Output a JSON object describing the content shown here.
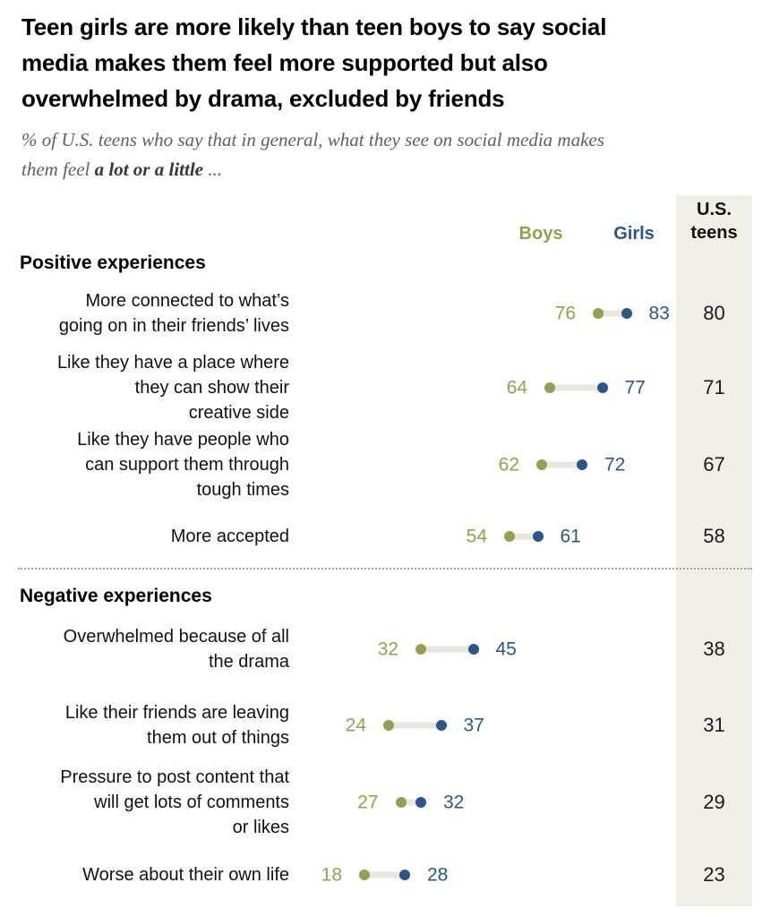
{
  "header": {
    "title": "Teen girls are more likely than teen boys to say social\nmedia makes them feel more supported but also\noverwhelmed by drama, excluded by friends",
    "subtitle_lead": "% of U.S. teens who say that in general, what they see on social media makes\nthem feel ",
    "subtitle_bold": "a lot or a little",
    "subtitle_trail": " ..."
  },
  "columns": {
    "boys_label": "Boys",
    "girls_label": "Girls",
    "us_teens_label": "U.S.\nteens"
  },
  "colors": {
    "boys": "#95A04F",
    "girls": "#2B568C",
    "connector": "#E9E6DF",
    "us_column_bg": "#F0EEE7"
  },
  "chart_data": {
    "type": "scatter",
    "variant": "dumbbell-dot-plot",
    "title": "Teen girls are more likely than teen boys to say social media makes them feel more supported but also overwhelmed by drama, excluded by friends",
    "subtitle": "% of U.S. teens who say that in general, what they see on social media makes them feel a lot or a little ...",
    "series_names": [
      "Boys",
      "Girls",
      "U.S. teens"
    ],
    "xlim": [
      0,
      100
    ],
    "axis_hidden": true,
    "legend_position": "top",
    "sections": [
      {
        "label": "Positive experiences",
        "rows": [
          {
            "label": "More connected to what’s\ngoing on in their friends’ lives",
            "boys": 76,
            "girls": 83,
            "us_teens": 80
          },
          {
            "label": "Like they have a place where\nthey can show their\ncreative side",
            "boys": 64,
            "girls": 77,
            "us_teens": 71
          },
          {
            "label": "Like they have people who\ncan support them through\ntough times",
            "boys": 62,
            "girls": 72,
            "us_teens": 67
          },
          {
            "label": "More accepted",
            "boys": 54,
            "girls": 61,
            "us_teens": 58
          }
        ]
      },
      {
        "label": "Negative experiences",
        "rows": [
          {
            "label": "Overwhelmed because of all\nthe drama",
            "boys": 32,
            "girls": 45,
            "us_teens": 38
          },
          {
            "label": "Like their friends are leaving\nthem out of things",
            "boys": 24,
            "girls": 37,
            "us_teens": 31
          },
          {
            "label": "Pressure to post content that\nwill get lots of comments\nor likes",
            "boys": 27,
            "girls": 32,
            "us_teens": 29
          },
          {
            "label": "Worse about their own life",
            "boys": 18,
            "girls": 28,
            "us_teens": 23
          }
        ]
      }
    ]
  }
}
